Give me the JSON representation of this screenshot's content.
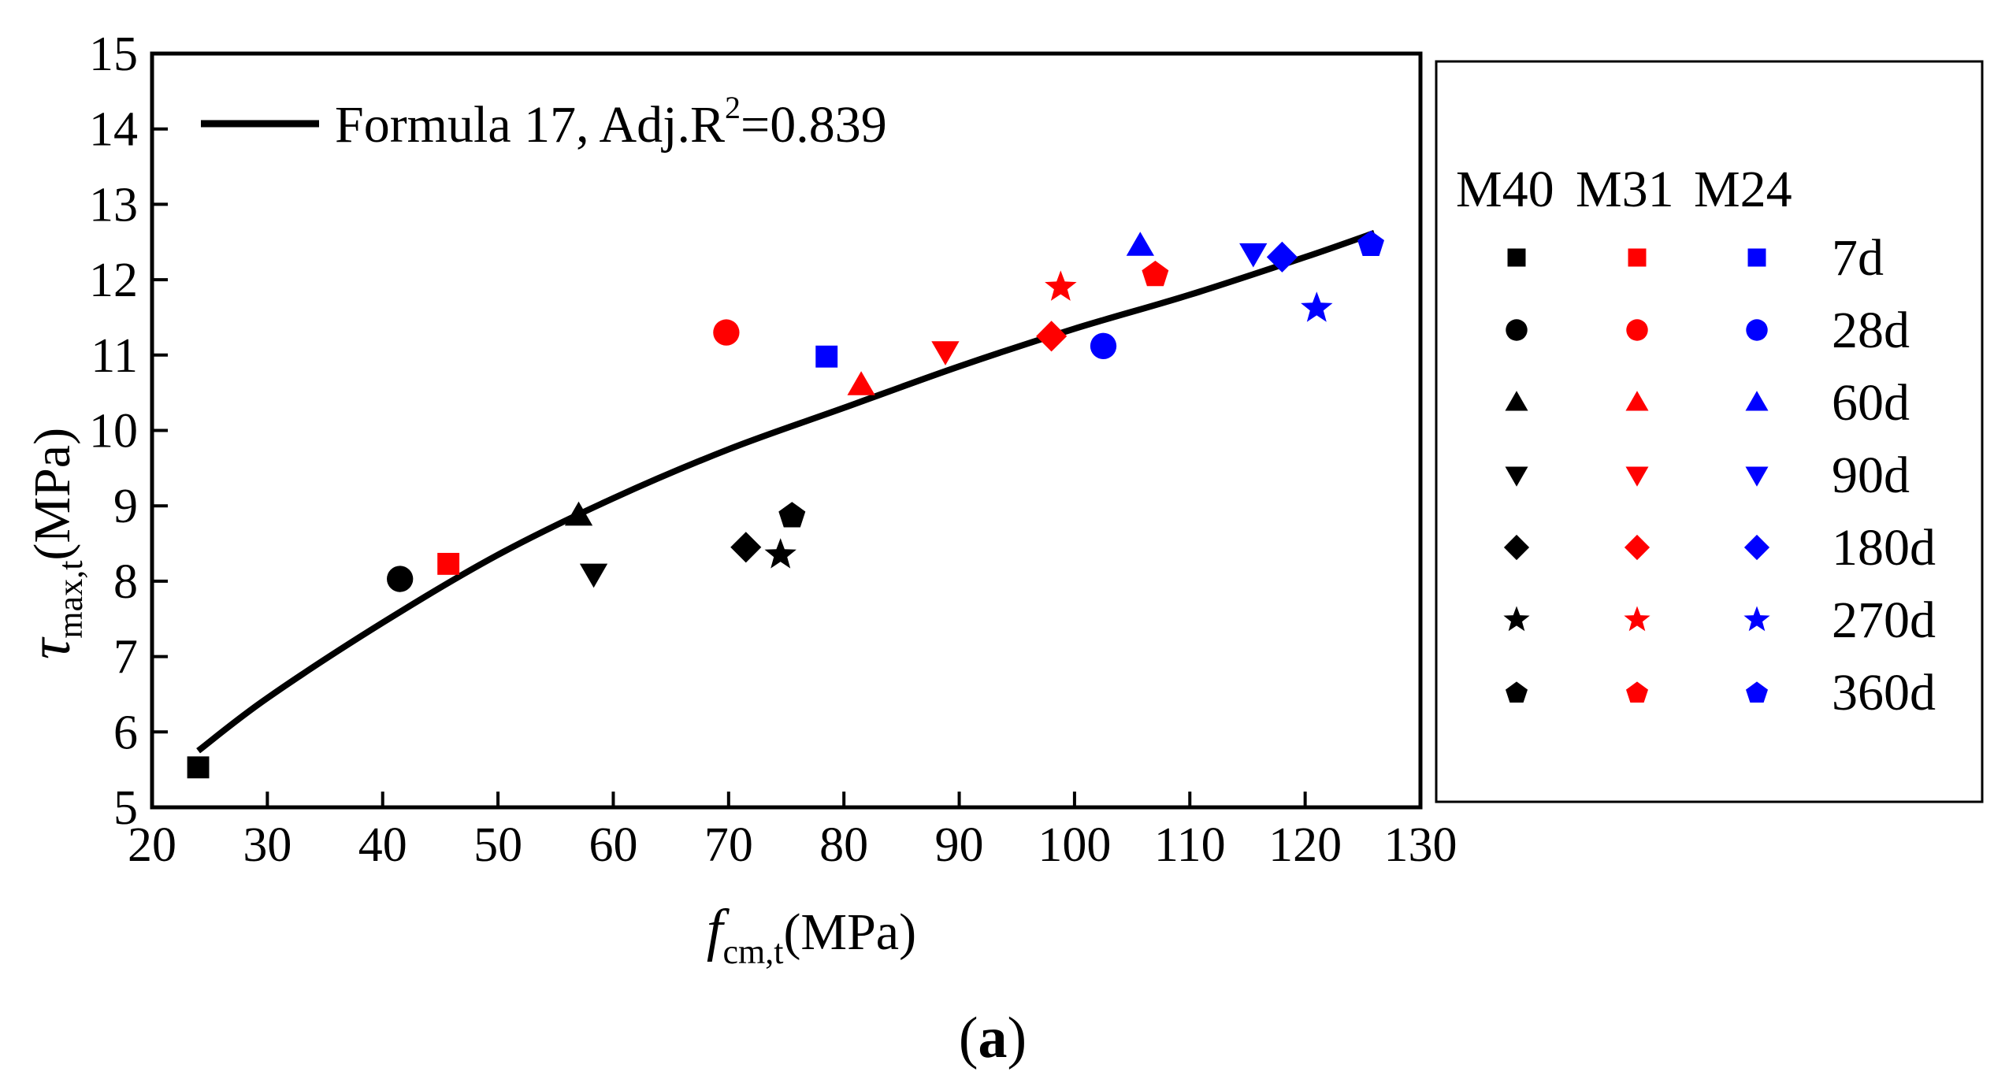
{
  "chart_data": {
    "type": "scatter",
    "title": "",
    "xlabel": {
      "main": "f",
      "sub": "cm,t",
      "unit": "(MPa)"
    },
    "ylabel": {
      "main": "τ",
      "sub": "max,t",
      "unit": "(MPa)"
    },
    "xlim": [
      20,
      130
    ],
    "ylim": [
      5,
      15
    ],
    "x_ticks": [
      20,
      30,
      40,
      50,
      60,
      70,
      80,
      90,
      100,
      110,
      120,
      130
    ],
    "y_ticks": [
      5,
      6,
      7,
      8,
      9,
      10,
      11,
      12,
      13,
      14,
      15
    ],
    "grid": false,
    "fit_line": {
      "label_text": "Formula 17, Adj.R",
      "label_sup": "2",
      "label_tail": "=0.839",
      "x": [
        24,
        30,
        40,
        50,
        60,
        70,
        80,
        90,
        100,
        110,
        120,
        126
      ],
      "y": [
        5.75,
        6.45,
        7.45,
        8.35,
        9.1,
        9.75,
        10.3,
        10.85,
        11.35,
        11.8,
        12.3,
        12.62
      ]
    },
    "legend": {
      "position": "right",
      "mixes": [
        "M40",
        "M31",
        "M24"
      ],
      "ages": [
        "7d",
        "28d",
        "60d",
        "90d",
        "180d",
        "270d",
        "360d"
      ]
    },
    "series": [
      {
        "name": "M40",
        "color": "#000000",
        "points": [
          {
            "age": "7d",
            "x": 24,
            "y": 5.53
          },
          {
            "age": "28d",
            "x": 41.5,
            "y": 8.03
          },
          {
            "age": "60d",
            "x": 57,
            "y": 8.87
          },
          {
            "age": "90d",
            "x": 58.3,
            "y": 8.1
          },
          {
            "age": "180d",
            "x": 71.5,
            "y": 8.45
          },
          {
            "age": "270d",
            "x": 74.5,
            "y": 8.35
          },
          {
            "age": "360d",
            "x": 75.5,
            "y": 8.88
          }
        ]
      },
      {
        "name": "M31",
        "color": "#ff0000",
        "points": [
          {
            "age": "7d",
            "x": 45.7,
            "y": 8.23
          },
          {
            "age": "28d",
            "x": 69.8,
            "y": 11.3
          },
          {
            "age": "60d",
            "x": 81.5,
            "y": 10.6
          },
          {
            "age": "90d",
            "x": 88.8,
            "y": 11.05
          },
          {
            "age": "180d",
            "x": 98,
            "y": 11.25
          },
          {
            "age": "270d",
            "x": 98.8,
            "y": 11.9
          },
          {
            "age": "360d",
            "x": 107,
            "y": 12.08
          }
        ]
      },
      {
        "name": "M24",
        "color": "#0000ff",
        "points": [
          {
            "age": "7d",
            "x": 78.5,
            "y": 10.98
          },
          {
            "age": "28d",
            "x": 102.5,
            "y": 11.12
          },
          {
            "age": "60d",
            "x": 105.7,
            "y": 12.45
          },
          {
            "age": "90d",
            "x": 115.5,
            "y": 12.35
          },
          {
            "age": "180d",
            "x": 118,
            "y": 12.3
          },
          {
            "age": "270d",
            "x": 121,
            "y": 11.62
          },
          {
            "age": "360d",
            "x": 125.7,
            "y": 12.48
          }
        ]
      }
    ]
  },
  "caption": {
    "open": "(",
    "letter": "a",
    "close": ")"
  }
}
